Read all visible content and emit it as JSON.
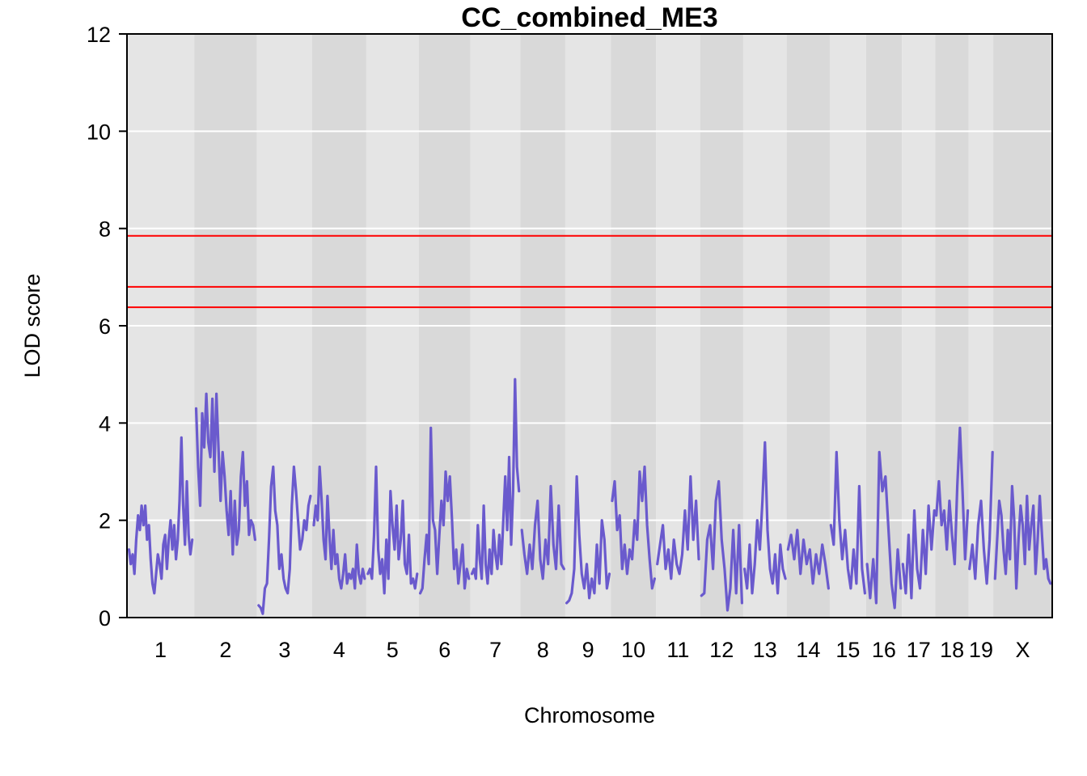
{
  "chart_data": {
    "type": "line",
    "title": "CC_combined_ME3",
    "xlabel": "Chromosome",
    "ylabel": "LOD score",
    "ylim": [
      0,
      12
    ],
    "yticks": [
      0,
      2,
      4,
      6,
      8,
      10,
      12
    ],
    "grid": true,
    "colors": {
      "line": "#6A5ACD",
      "threshold": "#FF0000",
      "band_light": "#E5E5E5",
      "band_dark": "#D9D9D9",
      "grid": "#FFFFFF"
    },
    "chromosomes": [
      {
        "label": "1",
        "start": 0,
        "end": 195
      },
      {
        "label": "2",
        "start": 195,
        "end": 377
      },
      {
        "label": "3",
        "start": 377,
        "end": 537
      },
      {
        "label": "4",
        "start": 537,
        "end": 694
      },
      {
        "label": "5",
        "start": 694,
        "end": 846
      },
      {
        "label": "6",
        "start": 846,
        "end": 996
      },
      {
        "label": "7",
        "start": 996,
        "end": 1141
      },
      {
        "label": "8",
        "start": 1141,
        "end": 1271
      },
      {
        "label": "9",
        "start": 1271,
        "end": 1403
      },
      {
        "label": "10",
        "start": 1403,
        "end": 1534
      },
      {
        "label": "11",
        "start": 1534,
        "end": 1662
      },
      {
        "label": "12",
        "start": 1662,
        "end": 1787
      },
      {
        "label": "13",
        "start": 1787,
        "end": 1913
      },
      {
        "label": "14",
        "start": 1913,
        "end": 2038
      },
      {
        "label": "15",
        "start": 2038,
        "end": 2143
      },
      {
        "label": "16",
        "start": 2143,
        "end": 2247
      },
      {
        "label": "17",
        "start": 2247,
        "end": 2344
      },
      {
        "label": "18",
        "start": 2344,
        "end": 2441
      },
      {
        "label": "19",
        "start": 2441,
        "end": 2512
      },
      {
        "label": "X",
        "start": 2512,
        "end": 2683
      }
    ],
    "thresholds": [
      7.85,
      6.8,
      6.38
    ],
    "series": [
      {
        "values": [
          [
            0,
            [
              1.4,
              1.1,
              1.3,
              0.9,
              1.6,
              2.1,
              1.8,
              2.3,
              1.9,
              2.3,
              1.6,
              1.9,
              1.2,
              0.7,
              0.5,
              0.9,
              1.3,
              1.1,
              0.8,
              1.5,
              1.7,
              1.0,
              1.6,
              2.0,
              1.4,
              1.9,
              1.2,
              1.6,
              2.4,
              3.7,
              2.3,
              1.5,
              2.8,
              1.7,
              1.3,
              1.6
            ]
          ],
          [
            195,
            [
              4.3,
              3.1,
              2.3,
              4.2,
              3.5,
              4.6,
              3.6,
              3.3,
              4.5,
              3.0,
              4.6,
              3.5,
              2.4,
              3.4,
              2.9,
              2.2,
              1.7,
              2.6,
              1.3,
              2.4,
              1.5,
              1.8,
              2.9,
              3.4,
              2.3,
              2.8,
              1.7,
              2.0,
              1.9,
              1.6
            ]
          ],
          [
            377,
            [
              0.25,
              0.2,
              0.08,
              0.6,
              0.7,
              1.6,
              2.7,
              3.1,
              2.2,
              1.9,
              1.0,
              1.3,
              0.8,
              0.6,
              0.5,
              1.0,
              2.3,
              3.1,
              2.6,
              2.0,
              1.4,
              1.6,
              2.0,
              1.8,
              2.3,
              2.5
            ]
          ],
          [
            537,
            [
              1.9,
              2.3,
              2.0,
              3.1,
              2.4,
              1.6,
              1.2,
              2.5,
              1.7,
              1.0,
              1.8,
              1.1,
              1.3,
              0.8,
              0.6,
              0.9,
              1.3,
              0.7,
              0.9,
              0.8,
              1.0,
              0.6,
              1.5,
              0.9,
              0.7,
              1.0,
              0.8
            ]
          ],
          [
            694,
            [
              0.9,
              1.0,
              0.8,
              1.7,
              3.1,
              1.4,
              0.9,
              1.2,
              0.5,
              1.6,
              0.8,
              2.6,
              1.9,
              1.4,
              2.3,
              1.2,
              1.6,
              2.4,
              1.1,
              0.9,
              1.7,
              0.7,
              0.8,
              0.6,
              0.9
            ]
          ],
          [
            846,
            [
              0.5,
              0.6,
              1.2,
              1.7,
              1.1,
              3.9,
              2.0,
              1.8,
              0.9,
              1.7,
              2.4,
              1.9,
              3.0,
              2.4,
              2.9,
              2.0,
              1.0,
              1.4,
              0.7,
              1.1,
              1.5,
              0.6,
              1.0,
              0.8
            ]
          ],
          [
            996,
            [
              0.9,
              1.0,
              0.8,
              1.9,
              1.2,
              0.8,
              2.3,
              1.1,
              0.7,
              1.4,
              0.9,
              1.8,
              1.3,
              1.0,
              1.7,
              1.1,
              2.0,
              2.9,
              1.8,
              3.3,
              1.5,
              2.6,
              4.9,
              3.1,
              2.6
            ]
          ],
          [
            1141,
            [
              1.8,
              1.3,
              0.9,
              1.5,
              1.0,
              1.9,
              2.4,
              1.2,
              0.8,
              1.6,
              1.1,
              2.7,
              1.5,
              1.0,
              2.3,
              1.1,
              1.0
            ]
          ],
          [
            1271,
            [
              0.3,
              0.35,
              0.5,
              1.0,
              2.9,
              1.7,
              0.9,
              0.6,
              1.1,
              0.4,
              0.8,
              0.5,
              1.5,
              0.7,
              2.0,
              1.6,
              0.6,
              0.9
            ]
          ],
          [
            1403,
            [
              2.4,
              2.8,
              1.8,
              2.1,
              1.0,
              1.5,
              0.9,
              1.4,
              1.2,
              2.0,
              1.6,
              3.0,
              2.4,
              3.1,
              1.9,
              1.2,
              0.6,
              0.8
            ]
          ],
          [
            1534,
            [
              1.1,
              1.5,
              1.9,
              1.0,
              1.4,
              0.8,
              1.6,
              1.1,
              0.9,
              1.3,
              2.2,
              1.4,
              2.9,
              1.6,
              2.4,
              1.2
            ]
          ],
          [
            1662,
            [
              0.45,
              0.5,
              1.6,
              1.9,
              1.0,
              2.4,
              2.8,
              1.6,
              1.0,
              0.15,
              0.6,
              1.8,
              0.5,
              1.9,
              0.3
            ]
          ],
          [
            1787,
            [
              1.0,
              0.6,
              1.5,
              0.5,
              1.1,
              2.0,
              1.4,
              2.4,
              3.6,
              1.8,
              1.0,
              0.7,
              1.3,
              0.5,
              1.5,
              1.0,
              0.8
            ]
          ],
          [
            1913,
            [
              1.4,
              1.7,
              1.2,
              1.8,
              0.9,
              1.6,
              1.1,
              1.4,
              0.7,
              1.3,
              0.9,
              1.5,
              1.1,
              0.6
            ]
          ],
          [
            2038,
            [
              1.9,
              1.5,
              3.4,
              2.0,
              1.2,
              1.8,
              1.0,
              0.6,
              1.4,
              0.7,
              2.7,
              1.0,
              0.5
            ]
          ],
          [
            2143,
            [
              1.1,
              0.4,
              1.2,
              0.3,
              3.4,
              2.6,
              2.9,
              1.8,
              0.7,
              0.2,
              1.4,
              0.6
            ]
          ],
          [
            2247,
            [
              1.1,
              0.5,
              1.7,
              0.4,
              2.2,
              1.0,
              0.6,
              1.8,
              0.9,
              2.3,
              1.4,
              2.2
            ]
          ],
          [
            2344,
            [
              2.1,
              2.8,
              1.9,
              2.2,
              1.4,
              2.4,
              1.7,
              1.1,
              2.7,
              3.9,
              2.6,
              1.2,
              2.2
            ]
          ],
          [
            2441,
            [
              1.0,
              1.5,
              0.8,
              1.9,
              2.4,
              1.4,
              0.7,
              1.6,
              3.4
            ]
          ],
          [
            2512,
            [
              0.8,
              1.6,
              2.4,
              2.1,
              1.4,
              0.9,
              1.8,
              1.2,
              2.7,
              2.0,
              0.6,
              1.6,
              2.3,
              1.9,
              1.1,
              2.5,
              1.4,
              1.9,
              2.3,
              0.9,
              1.6,
              2.5,
              1.7,
              1.0,
              1.2,
              0.8,
              0.7
            ]
          ]
        ]
      }
    ]
  }
}
